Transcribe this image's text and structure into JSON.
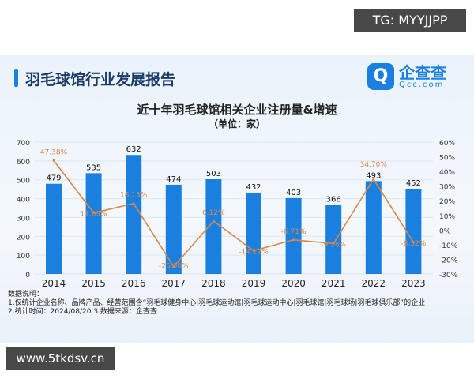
{
  "tg_label": "TG: MYYJJPP",
  "watermark": "www.5tkdsv.cn",
  "header": {
    "title": "羽毛球馆行业发展报告",
    "logo_main": "企查查",
    "logo_sub": "Qcc.com"
  },
  "chart_data": {
    "type": "bar+line",
    "title": "近十年羽毛球馆相关企业注册量&增速",
    "subtitle": "（单位：家）",
    "categories": [
      "2014",
      "2015",
      "2016",
      "2017",
      "2018",
      "2019",
      "2020",
      "2021",
      "2022",
      "2023"
    ],
    "series": [
      {
        "values": [
          479,
          535,
          632,
          474,
          503,
          432,
          403,
          366,
          493,
          452
        ],
        "type": "bar",
        "color": "#1a80e0",
        "axis": "left"
      },
      {
        "values": [
          47.38,
          11.69,
          18.13,
          -25.0,
          6.12,
          -14.12,
          -6.71,
          -9.18,
          34.7,
          -8.32
        ],
        "type": "line",
        "color": "#d9864a",
        "axis": "right",
        "labels": [
          "47.38%",
          "11.69%",
          "18.13%",
          "-25.00%",
          "6.12%",
          "-14.12%",
          "-6.71%",
          "-9.18%",
          "34.70%",
          "-8.32%"
        ]
      }
    ],
    "ylim": [
      0,
      700
    ],
    "yticks": [
      "0",
      "100",
      "200",
      "300",
      "400",
      "500",
      "600",
      "700"
    ],
    "y2lim": [
      -30,
      60
    ],
    "y2ticks": [
      "-30%",
      "-20%",
      "-10%",
      "0%",
      "10%",
      "20%",
      "30%",
      "40%",
      "50%",
      "60%"
    ],
    "grid": true
  },
  "notes": {
    "heading": "数据说明：",
    "line1": "1.仅统计企业名称、品牌产品、经营范围含“羽毛球健身中心|羽毛球运动馆|羽毛球运动中心|羽毛球馆|羽毛球场|羽毛球俱乐部”的企业",
    "line2": "2.统计时间：2024/08/20   3.数据来源：企查查"
  }
}
